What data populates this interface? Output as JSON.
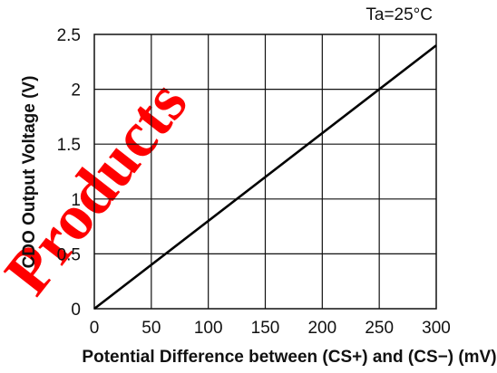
{
  "chart_data": {
    "type": "line",
    "xlabel": "Potential Difference between (CS+) and (CS−) (mV)",
    "ylabel": "CDO Output Voltage (V)",
    "annotation": "Ta=25°C",
    "xlim": [
      0,
      300
    ],
    "ylim": [
      0,
      2.5
    ],
    "x_ticks": [
      "0",
      "50",
      "100",
      "150",
      "200",
      "250",
      "300"
    ],
    "y_ticks": [
      "0",
      "0.5",
      "1",
      "1.5",
      "2",
      "2.5"
    ],
    "grid": true,
    "series": [
      {
        "x": [
          0,
          300
        ],
        "y": [
          0,
          2.4
        ]
      }
    ]
  },
  "watermark": {
    "text": "Products",
    "color": "#ff0000"
  }
}
